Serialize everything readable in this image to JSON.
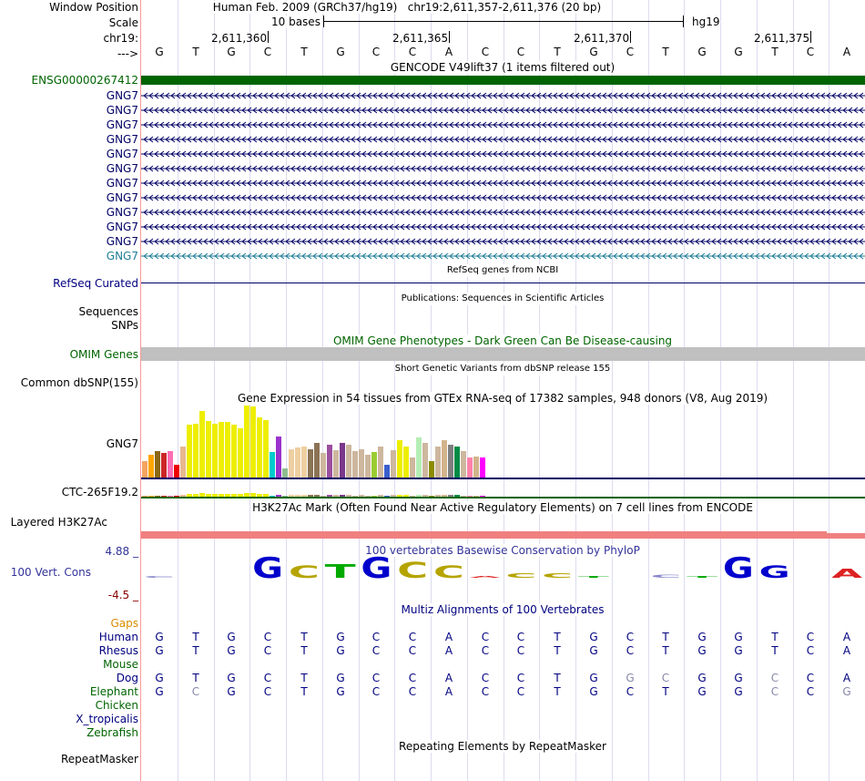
{
  "labels": {
    "window_position": "Window Position",
    "scale": "Scale",
    "chrom": "chr19:",
    "arrow": "--->",
    "ensg": "ENSG00000267412",
    "gng7": "GNG7",
    "refseq": "RefSeq Curated",
    "sequences": "Sequences",
    "snps": "SNPs",
    "omim": "OMIM Genes",
    "dbsnp": "Common dbSNP(155)",
    "gtex": "GNG7",
    "ctc": "CTC-265F19.2",
    "h3k27ac": "Layered H3K27Ac",
    "cons_max": "4.88 _",
    "cons": "100 Vert. Cons",
    "cons_min": "-4.5 _",
    "repeatmasker": "RepeatMasker"
  },
  "header": {
    "assembly": "Human Feb. 2009 (GRCh37/hg19)",
    "position": "chr19:2,611,357-2,611,376 (20 bp)",
    "scale_text": "10 bases",
    "db": "hg19"
  },
  "coords": [
    "2,611,360",
    "2,611,365",
    "2,611,370",
    "2,611,375"
  ],
  "sequence": [
    "G",
    "T",
    "G",
    "C",
    "T",
    "G",
    "C",
    "C",
    "A",
    "C",
    "C",
    "T",
    "G",
    "C",
    "T",
    "G",
    "G",
    "T",
    "C",
    "A"
  ],
  "tracks": {
    "gencode_title": "GENCODE V49lift37 (1 items filtered out)",
    "refseq_title": "RefSeq genes from NCBI",
    "pubs_title": "Publications: Sequences in Scientific Articles",
    "omim_title": "OMIM Gene Phenotypes - Dark Green Can Be Disease-causing",
    "dbsnp_title": "Short Genetic Variants from dbSNP release 155",
    "gtex_title": "Gene Expression in 54 tissues from GTEx RNA-seq of 17382 samples, 948 donors (V8, Aug 2019)",
    "h3k27ac_title": "H3K27Ac Mark (Often Found Near Active Regulatory Elements) on 7 cell lines from ENCODE",
    "cons_title": "100 vertebrates Basewise Conservation by PhyloP",
    "multiz_title": "Multiz Alignments of 100 Vertebrates",
    "repeat_title": "Repeating Elements by RepeatMasker"
  },
  "gtex": [
    {
      "v": 0.22,
      "c": "#f4a460"
    },
    {
      "v": 0.31,
      "c": "#ffa500"
    },
    {
      "v": 0.36,
      "c": "#8b6914"
    },
    {
      "v": 0.34,
      "c": "#cd2626"
    },
    {
      "v": 0.36,
      "c": "#ff6eb4"
    },
    {
      "v": 0.17,
      "c": "#ee0000"
    },
    {
      "v": 0.43,
      "c": "#e8b890"
    },
    {
      "v": 0.72,
      "c": "#eeee00"
    },
    {
      "v": 0.74,
      "c": "#eeee00"
    },
    {
      "v": 0.91,
      "c": "#eeee00"
    },
    {
      "v": 0.77,
      "c": "#eeee00"
    },
    {
      "v": 0.74,
      "c": "#eeee00"
    },
    {
      "v": 0.76,
      "c": "#eeee00"
    },
    {
      "v": 0.76,
      "c": "#eeee00"
    },
    {
      "v": 0.72,
      "c": "#eeee00"
    },
    {
      "v": 0.68,
      "c": "#eeee00"
    },
    {
      "v": 0.99,
      "c": "#eeee00"
    },
    {
      "v": 0.98,
      "c": "#eeee00"
    },
    {
      "v": 0.83,
      "c": "#eeee00"
    },
    {
      "v": 0.79,
      "c": "#eeee00"
    },
    {
      "v": 0.35,
      "c": "#00cdcd"
    },
    {
      "v": 0.56,
      "c": "#9a32cd"
    },
    {
      "v": 0.12,
      "c": "#8fbc8f"
    },
    {
      "v": 0.39,
      "c": "#eecfa1"
    },
    {
      "v": 0.41,
      "c": "#eecfa1"
    },
    {
      "v": 0.42,
      "c": "#eecfa1"
    },
    {
      "v": 0.39,
      "c": "#8b7355"
    },
    {
      "v": 0.47,
      "c": "#8b7355"
    },
    {
      "v": 0.34,
      "c": "#cdb79e"
    },
    {
      "v": 0.45,
      "c": "#9b4f9f"
    },
    {
      "v": 0.38,
      "c": "#cdb79e"
    },
    {
      "v": 0.47,
      "c": "#7a378b"
    },
    {
      "v": 0.45,
      "c": "#cdb79e"
    },
    {
      "v": 0.36,
      "c": "#cdb79e"
    },
    {
      "v": 0.39,
      "c": "#cdb79e"
    },
    {
      "v": 0.31,
      "c": "#cdb79e"
    },
    {
      "v": 0.35,
      "c": "#9acd32"
    },
    {
      "v": 0.42,
      "c": "#cdb79e"
    },
    {
      "v": 0.17,
      "c": "#3a5fcd"
    },
    {
      "v": 0.38,
      "c": "#cdb79e"
    },
    {
      "v": 0.51,
      "c": "#eeee00"
    },
    {
      "v": 0.43,
      "c": "#eeee00"
    },
    {
      "v": 0.28,
      "c": "#cdb79e"
    },
    {
      "v": 0.55,
      "c": "#b4eeb4"
    },
    {
      "v": 0.47,
      "c": "#cdb79e"
    },
    {
      "v": 0.23,
      "c": "#8b8b00"
    },
    {
      "v": 0.43,
      "c": "#cdb79e"
    },
    {
      "v": 0.51,
      "c": "#d2b48c"
    },
    {
      "v": 0.45,
      "c": "#7f7f7f"
    },
    {
      "v": 0.43,
      "c": "#008b45"
    },
    {
      "v": 0.36,
      "c": "#cdb79e"
    },
    {
      "v": 0.28,
      "c": "#ff82ab"
    },
    {
      "v": 0.29,
      "c": "#d2b48c"
    },
    {
      "v": 0.28,
      "c": "#ff00ff"
    }
  ],
  "conservation": [
    {
      "b": "C",
      "h": 0.02,
      "c": "#8888cc"
    },
    {
      "b": "",
      "h": 0,
      "c": "#000"
    },
    {
      "b": "",
      "h": 0,
      "c": "#000"
    },
    {
      "b": "G",
      "h": 0.55,
      "c": "#0000cc"
    },
    {
      "b": "C",
      "h": 0.32,
      "c": "#b5a400"
    },
    {
      "b": "T",
      "h": 0.34,
      "c": "#00aa00"
    },
    {
      "b": "G",
      "h": 0.55,
      "c": "#0000cc"
    },
    {
      "b": "C",
      "h": 0.42,
      "c": "#b5a400"
    },
    {
      "b": "C",
      "h": 0.32,
      "c": "#b5a400"
    },
    {
      "b": "A",
      "h": 0.06,
      "c": "#dd2222"
    },
    {
      "b": "C",
      "h": 0.12,
      "c": "#b5a400"
    },
    {
      "b": "C",
      "h": 0.12,
      "c": "#b5a400"
    },
    {
      "b": "T",
      "h": 0.04,
      "c": "#00aa00"
    },
    {
      "b": "",
      "h": 0,
      "c": "#000"
    },
    {
      "b": "C",
      "h": 0.08,
      "c": "#8888cc"
    },
    {
      "b": "T",
      "h": 0.04,
      "c": "#00aa00"
    },
    {
      "b": "G",
      "h": 0.55,
      "c": "#0000cc"
    },
    {
      "b": "G",
      "h": 0.32,
      "c": "#0000cc"
    },
    {
      "b": "",
      "h": 0,
      "c": "#000"
    },
    {
      "b": "A",
      "h": 0.22,
      "c": "#dd2222"
    }
  ],
  "multiz": {
    "species": [
      {
        "name": "Gaps",
        "color": "#d98c00"
      },
      {
        "name": "Human",
        "color": "#000080"
      },
      {
        "name": "Rhesus",
        "color": "#000080"
      },
      {
        "name": "Mouse",
        "color": "#006400"
      },
      {
        "name": "Dog",
        "color": "#000080"
      },
      {
        "name": "Elephant",
        "color": "#006400"
      },
      {
        "name": "Chicken",
        "color": "#006400"
      },
      {
        "name": "X_tropicalis",
        "color": "#000080"
      },
      {
        "name": "Zebrafish",
        "color": "#006400"
      }
    ],
    "rows": {
      "Human": "GTGCTGCCACCTGCTGGTCA",
      "Rhesus": "GTGCTGCCACCTGCTGGTCA",
      "Dog": "GTGCTGCCACCTGGCGGCCA",
      "Elephant": "GCGCTGCCACCTGCTGGCCG"
    },
    "dim": {
      "Dog": [
        13,
        14,
        17
      ],
      "Elephant": [
        1,
        17,
        19
      ]
    }
  },
  "colors": {
    "label_navy": "#000080",
    "label_green": "#006400",
    "gene_navy": "#000066",
    "gene_teal": "#1e7d96",
    "ensg_green": "#006400",
    "omim_gray": "#c0c0c0",
    "h3k27ac": "#f08080",
    "cons_title": "#333399"
  }
}
